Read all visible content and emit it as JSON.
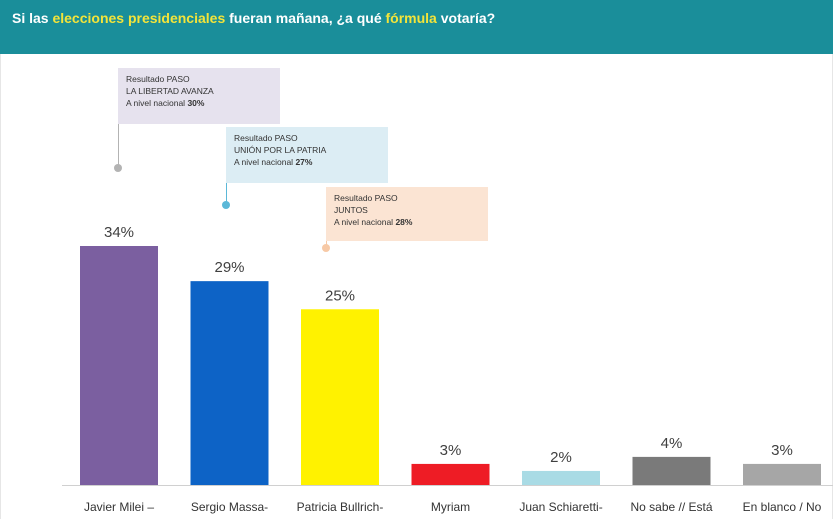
{
  "header": {
    "title_parts": {
      "p1": "Si las ",
      "p2": "elecciones presidenciales",
      "p3": " fueran mañana, ¿a qué ",
      "p4": "fórmula",
      "p5": " votaría?"
    }
  },
  "callouts": [
    {
      "line1": "Resultado PASO",
      "line2": "LA LIBERTAD AVANZA",
      "line3_prefix": "A nivel nacional ",
      "pct": "30%",
      "color": "#b3b3b3"
    },
    {
      "line1": "Resultado PASO",
      "line2": "UNIÓN POR LA PATRIA",
      "line3_prefix": "A nivel nacional ",
      "pct": "27%",
      "color": "#5bb8d8"
    },
    {
      "line1": "Resultado PASO",
      "line2": "JUNTOS",
      "line3_prefix": "A nivel nacional ",
      "pct": "28%",
      "color": "#f7c9a6"
    }
  ],
  "chart_data": {
    "type": "bar",
    "title": "Si las elecciones presidenciales fueran mañana, ¿a qué fórmula votaría?",
    "categories": [
      "Javier Milei –",
      "Sergio Massa-",
      "Patricia Bullrich-",
      "Myriam",
      "Juan Schiaretti-",
      "No sabe // Está",
      "En blanco / No"
    ],
    "values": [
      34,
      29,
      25,
      3,
      2,
      4,
      3
    ],
    "value_labels": [
      "34%",
      "29%",
      "25%",
      "3%",
      "2%",
      "4%",
      "3%"
    ],
    "colors": [
      "#7b5fa0",
      "#0d63c6",
      "#fff200",
      "#ee1c25",
      "#a9dbe5",
      "#7a7a7a",
      "#a6a6a6"
    ],
    "unit": "%",
    "ylim": [
      0,
      34
    ],
    "grid": false,
    "legend": "none"
  }
}
